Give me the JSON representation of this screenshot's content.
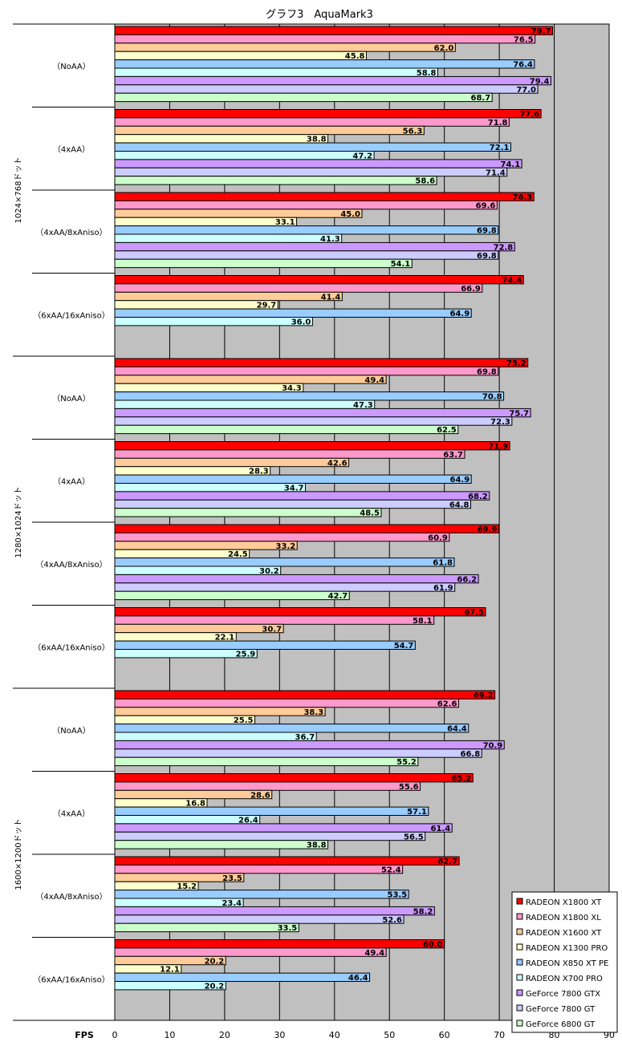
{
  "chart_data": {
    "type": "bar",
    "orientation": "horizontal",
    "title": "グラフ3　AquaMark3",
    "xlabel": "FPS",
    "xlim": [
      0,
      90
    ],
    "xticks": [
      0,
      10,
      20,
      30,
      40,
      50,
      60,
      70,
      80,
      90
    ],
    "grid": true,
    "legend_position": "bottom-right",
    "series": [
      {
        "name": "RADEON X1800 XT",
        "color": "#ff0000"
      },
      {
        "name": "RADEON X1800 XL",
        "color": "#ff99cc"
      },
      {
        "name": "RADEON X1600 XT",
        "color": "#ffcc99"
      },
      {
        "name": "RADEON X1300 PRO",
        "color": "#ffffcc"
      },
      {
        "name": "RADEON X850 XT PE",
        "color": "#99ccff"
      },
      {
        "name": "RADEON X700 PRO",
        "color": "#ccffff"
      },
      {
        "name": "GeForce 7800 GTX",
        "color": "#cc99ff"
      },
      {
        "name": "GeForce 7800 GT",
        "color": "#ccccff"
      },
      {
        "name": "GeForce 6800 GT",
        "color": "#ccffcc"
      }
    ],
    "resolutions": [
      {
        "label": "1024×768ドット",
        "groups": [
          {
            "label": "（NoAA）",
            "values": [
              79.7,
              76.5,
              62.0,
              45.8,
              76.4,
              58.8,
              79.4,
              77.0,
              68.7
            ]
          },
          {
            "label": "（4xAA）",
            "values": [
              77.6,
              71.8,
              56.3,
              38.8,
              72.1,
              47.2,
              74.1,
              71.4,
              58.6
            ]
          },
          {
            "label": "（4xAA/8xAniso）",
            "values": [
              76.3,
              69.6,
              45.0,
              33.1,
              69.8,
              41.3,
              72.8,
              69.8,
              54.1
            ]
          },
          {
            "label": "（6xAA/16xAniso）",
            "values": [
              74.4,
              66.9,
              41.4,
              29.7,
              64.9,
              36.0,
              null,
              null,
              null
            ]
          }
        ]
      },
      {
        "label": "1280×1024ドット",
        "groups": [
          {
            "label": "（NoAA）",
            "values": [
              75.2,
              69.8,
              49.4,
              34.3,
              70.8,
              47.3,
              75.7,
              72.3,
              62.5
            ]
          },
          {
            "label": "（4xAA）",
            "values": [
              71.9,
              63.7,
              42.6,
              28.3,
              64.9,
              34.7,
              68.2,
              64.8,
              48.5
            ]
          },
          {
            "label": "（4xAA/8xAniso）",
            "values": [
              69.9,
              60.9,
              33.2,
              24.5,
              61.8,
              30.2,
              66.2,
              61.9,
              42.7
            ]
          },
          {
            "label": "（6xAA/16xAniso）",
            "values": [
              67.5,
              58.1,
              30.7,
              22.1,
              54.7,
              25.9,
              null,
              null,
              null
            ]
          }
        ]
      },
      {
        "label": "1600×1200ドット",
        "groups": [
          {
            "label": "（NoAA）",
            "values": [
              69.2,
              62.6,
              38.3,
              25.5,
              64.4,
              36.7,
              70.9,
              66.8,
              55.2
            ]
          },
          {
            "label": "（4xAA）",
            "values": [
              65.2,
              55.6,
              28.6,
              16.8,
              57.1,
              26.4,
              61.4,
              56.5,
              38.8
            ]
          },
          {
            "label": "（4xAA/8xAniso）",
            "values": [
              62.7,
              52.4,
              23.5,
              15.2,
              53.5,
              23.4,
              58.2,
              52.6,
              33.5
            ]
          },
          {
            "label": "（6xAA/16xAniso）",
            "values": [
              60.0,
              49.4,
              20.2,
              12.1,
              46.4,
              20.2,
              null,
              null,
              null
            ]
          }
        ]
      }
    ]
  }
}
